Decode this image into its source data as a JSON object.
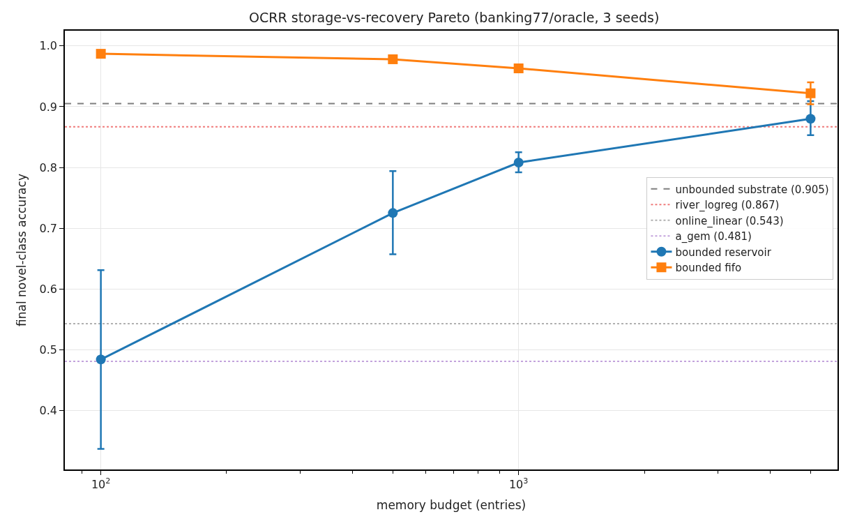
{
  "chart_data": {
    "type": "line",
    "title": "OCRR storage-vs-recovery Pareto (banking77/oracle, 3 seeds)",
    "xlabel": "memory budget (entries)",
    "ylabel": "final novel-class accuracy",
    "x": [
      100,
      500,
      1000,
      5000
    ],
    "log": "x",
    "xlim": [
      82,
      5800
    ],
    "ylim": [
      0.303,
      1.025
    ],
    "xticks": [
      {
        "value": 90,
        "label": null
      },
      {
        "value": 100,
        "label": "10$^{2}$"
      },
      {
        "value": 200,
        "label": null
      },
      {
        "value": 300,
        "label": null
      },
      {
        "value": 400,
        "label": null
      },
      {
        "value": 500,
        "label": null
      },
      {
        "value": 600,
        "label": null
      },
      {
        "value": 700,
        "label": null
      },
      {
        "value": 800,
        "label": null
      },
      {
        "value": 900,
        "label": null
      },
      {
        "value": 1000,
        "label": "10$^{3}$"
      },
      {
        "value": 2000,
        "label": null
      },
      {
        "value": 3000,
        "label": null
      },
      {
        "value": 4000,
        "label": null
      },
      {
        "value": 5000,
        "label": null
      }
    ],
    "yticks": [
      0.4,
      0.5,
      0.6,
      0.7,
      0.8,
      0.9,
      {
        "value": 1.0,
        "label": "1.0"
      }
    ],
    "grid": true,
    "legend": "right",
    "ref_lines": [
      {
        "axis": "y",
        "value": 0.905,
        "label": "unbounded substrate (0.905)",
        "color": "#7f7f7f",
        "line_style": "dashed"
      },
      {
        "axis": "y",
        "value": 0.867,
        "label": "river_logreg (0.867)",
        "color": "#f07c7c",
        "line_style": "dotted"
      },
      {
        "axis": "y",
        "value": 0.543,
        "label": "online_linear (0.543)",
        "color": "#b0b0b0",
        "line_style": "dotted"
      },
      {
        "axis": "y",
        "value": 0.481,
        "label": "a_gem (0.481)",
        "color": "#c3a3dc",
        "line_style": "dotted"
      }
    ],
    "series": [
      {
        "name": "bounded reservoir",
        "color": "#1f77b4",
        "marker": "circle",
        "values": [
          0.484,
          0.725,
          0.808,
          0.88
        ],
        "errors": [
          [
            0.337,
            0.631
          ],
          [
            0.657,
            0.794
          ],
          [
            0.792,
            0.825
          ],
          [
            0.853,
            0.909
          ]
        ]
      },
      {
        "name": "bounded fifo",
        "color": "#ff7f0e",
        "marker": "square",
        "values": [
          0.987,
          0.978,
          0.963,
          0.922
        ],
        "errors": [
          null,
          null,
          null,
          0.018
        ]
      }
    ]
  }
}
